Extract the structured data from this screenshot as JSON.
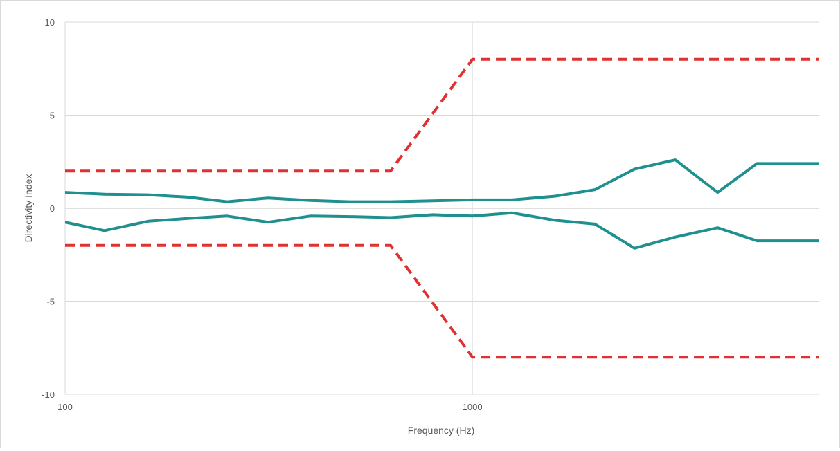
{
  "chart_data": {
    "type": "line",
    "title": "",
    "xlabel": "Frequency (Hz)",
    "ylabel": "Directivity Index",
    "x_scale": "log",
    "xlim": [
      100,
      7079
    ],
    "ylim": [
      -10,
      10
    ],
    "x_ticks": [
      {
        "value": 100,
        "label": "100"
      },
      {
        "value": 1000,
        "label": "1000"
      }
    ],
    "y_ticks": [
      {
        "value": -10,
        "label": "-10"
      },
      {
        "value": -5,
        "label": "-5"
      },
      {
        "value": 0,
        "label": "0"
      },
      {
        "value": 5,
        "label": "5"
      },
      {
        "value": 10,
        "label": "10"
      }
    ],
    "grid": {
      "horizontal": true,
      "vertical": true
    },
    "legend": "none",
    "series": [
      {
        "color": "#e03131",
        "style": "dashed",
        "x": [
          100,
          630,
          1000,
          7079
        ],
        "y": [
          2,
          2,
          8,
          8
        ]
      },
      {
        "color": "#e03131",
        "style": "dashed",
        "x": [
          100,
          630,
          1000,
          7079
        ],
        "y": [
          -2,
          -2,
          -8,
          -8
        ]
      },
      {
        "color": "#1f8f8f",
        "style": "solid",
        "x": [
          100,
          125,
          160,
          200,
          250,
          315,
          400,
          500,
          630,
          800,
          1000,
          1250,
          1600,
          2000,
          2500,
          3150,
          4000,
          5000,
          6300,
          7079
        ],
        "y": [
          0.85,
          0.75,
          0.72,
          0.6,
          0.35,
          0.55,
          0.42,
          0.35,
          0.35,
          0.4,
          0.45,
          0.45,
          0.65,
          1.0,
          2.1,
          2.6,
          0.85,
          2.4,
          2.4,
          2.4
        ]
      },
      {
        "color": "#1f8f8f",
        "style": "solid",
        "x": [
          100,
          125,
          160,
          200,
          250,
          315,
          400,
          500,
          630,
          800,
          1000,
          1250,
          1600,
          2000,
          2500,
          3150,
          4000,
          5000,
          6300,
          7079
        ],
        "y": [
          -0.75,
          -1.2,
          -0.7,
          -0.55,
          -0.42,
          -0.75,
          -0.42,
          -0.45,
          -0.5,
          -0.35,
          -0.42,
          -0.25,
          -0.65,
          -0.85,
          -2.15,
          -1.55,
          -1.05,
          -1.75,
          -1.75,
          -1.75
        ]
      }
    ]
  }
}
